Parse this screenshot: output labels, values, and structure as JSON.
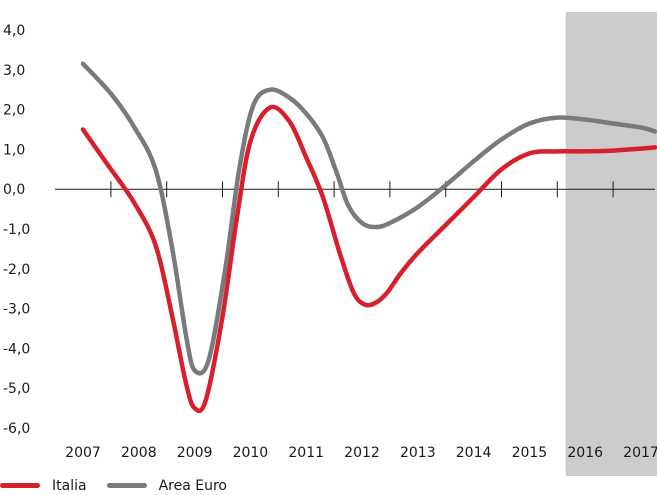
{
  "chart_data": {
    "type": "line",
    "title": "",
    "xlabel": "",
    "ylabel": "",
    "categories": [
      "2007",
      "2008",
      "2009",
      "2010",
      "2011",
      "2012",
      "2013",
      "2014",
      "2015",
      "2016",
      "2017"
    ],
    "ylim": [
      -6,
      4
    ],
    "yticks": [
      4,
      3,
      2,
      1,
      0,
      -1,
      -2,
      -3,
      -4,
      -5,
      -6
    ],
    "ytick_labels": [
      "4,0",
      "3,0",
      "2,0",
      "1,0",
      "0,0",
      "-1,0",
      "-2,0",
      "-3,0",
      "-4,0",
      "-5,0",
      "-6,0"
    ],
    "grid": false,
    "legend_position": "bottom-left",
    "shaded_range": {
      "from": 2015.65,
      "to": 2017.25,
      "color": "#cccccc"
    },
    "series": [
      {
        "name": "Italia",
        "color": "#d7202b",
        "x": [
          2007.0,
          2007.45,
          2007.9,
          2008.3,
          2008.6,
          2008.85,
          2009.0,
          2009.2,
          2009.5,
          2009.75,
          2010.0,
          2010.35,
          2010.7,
          2011.0,
          2011.3,
          2011.6,
          2011.85,
          2012.05,
          2012.25,
          2012.45,
          2012.7,
          2013.0,
          2013.5,
          2014.0,
          2014.5,
          2015.0,
          2015.5,
          2016.0,
          2016.5,
          2017.0,
          2017.25
        ],
        "y": [
          1.5,
          0.6,
          -0.3,
          -1.4,
          -3.2,
          -4.9,
          -5.5,
          -5.3,
          -3.2,
          -0.8,
          1.2,
          2.05,
          1.7,
          0.8,
          -0.2,
          -1.6,
          -2.6,
          -2.9,
          -2.85,
          -2.6,
          -2.1,
          -1.6,
          -0.9,
          -0.2,
          0.5,
          0.9,
          0.95,
          0.95,
          0.97,
          1.02,
          1.05
        ]
      },
      {
        "name": "Area Euro",
        "color": "#7a7a7a",
        "x": [
          2007.0,
          2007.5,
          2007.9,
          2008.3,
          2008.6,
          2008.85,
          2009.0,
          2009.25,
          2009.55,
          2009.8,
          2010.05,
          2010.35,
          2010.7,
          2011.0,
          2011.3,
          2011.55,
          2011.75,
          2012.0,
          2012.25,
          2012.5,
          2013.0,
          2013.5,
          2014.0,
          2014.5,
          2015.0,
          2015.5,
          2016.0,
          2016.5,
          2017.0,
          2017.25
        ],
        "y": [
          3.15,
          2.4,
          1.6,
          0.5,
          -1.5,
          -3.7,
          -4.55,
          -4.3,
          -2.0,
          0.5,
          2.1,
          2.5,
          2.3,
          1.9,
          1.3,
          0.4,
          -0.4,
          -0.85,
          -0.95,
          -0.85,
          -0.45,
          0.1,
          0.7,
          1.25,
          1.65,
          1.8,
          1.75,
          1.65,
          1.55,
          1.45
        ]
      }
    ]
  }
}
